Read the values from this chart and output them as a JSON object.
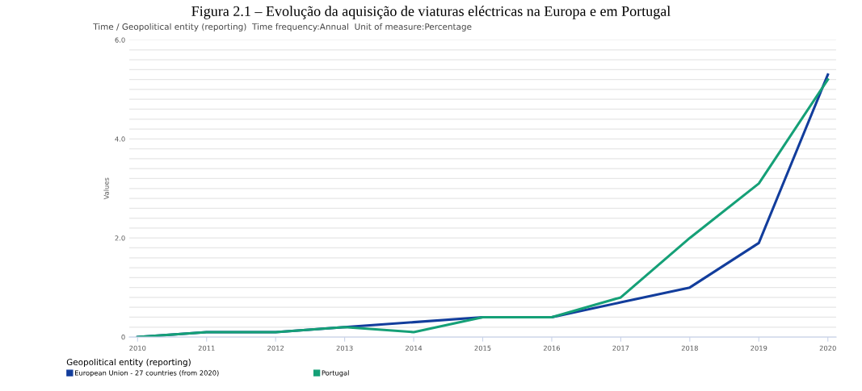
{
  "chart_data": {
    "type": "line",
    "title": "Figura 2.1 – Evolução da aquisição de viaturas eléctricas na Europa e em Portugal",
    "subtitle": "Time / Geopolitical entity (reporting)  Time frequency:Annual  Unit of measure:Percentage",
    "ylabel": "Values",
    "legend_title": "Geopolitical entity (reporting)",
    "x": [
      2010,
      2011,
      2012,
      2013,
      2014,
      2015,
      2016,
      2017,
      2018,
      2019,
      2020
    ],
    "series": [
      {
        "name": "European Union - 27 countries (from 2020)",
        "color": "#123d9c",
        "values": [
          0,
          0.1,
          0.1,
          0.2,
          0.3,
          0.4,
          0.4,
          0.7,
          1.0,
          1.9,
          5.3
        ]
      },
      {
        "name": "Portugal",
        "color": "#15a077",
        "values": [
          0,
          0.1,
          0.1,
          0.2,
          0.1,
          0.4,
          0.4,
          0.8,
          2.0,
          3.1,
          5.2
        ]
      }
    ],
    "xlim": [
      2009.88,
      2020.12
    ],
    "xticks": [
      2010,
      2011,
      2012,
      2013,
      2014,
      2015,
      2016,
      2017,
      2018,
      2019,
      2020
    ],
    "ylim": [
      0,
      6.0
    ],
    "yticks": [
      {
        "value": 0,
        "label": "0"
      },
      {
        "value": 0.2,
        "label": null
      },
      {
        "value": 0.4,
        "label": null
      },
      {
        "value": 0.6,
        "label": null
      },
      {
        "value": 0.8,
        "label": null
      },
      {
        "value": 1.0,
        "label": null
      },
      {
        "value": 1.2,
        "label": null
      },
      {
        "value": 1.4,
        "label": null
      },
      {
        "value": 1.6,
        "label": null
      },
      {
        "value": 1.8,
        "label": null
      },
      {
        "value": 2.0,
        "label": "2.0"
      },
      {
        "value": 2.2,
        "label": null
      },
      {
        "value": 2.4,
        "label": null
      },
      {
        "value": 2.6,
        "label": null
      },
      {
        "value": 2.8,
        "label": null
      },
      {
        "value": 3.0,
        "label": null
      },
      {
        "value": 3.2,
        "label": null
      },
      {
        "value": 3.4,
        "label": null
      },
      {
        "value": 3.6,
        "label": null
      },
      {
        "value": 3.8,
        "label": null
      },
      {
        "value": 4.0,
        "label": "4.0"
      },
      {
        "value": 4.2,
        "label": null
      },
      {
        "value": 4.4,
        "label": null
      },
      {
        "value": 4.6,
        "label": null
      },
      {
        "value": 4.8,
        "label": null
      },
      {
        "value": 5.0,
        "label": null
      },
      {
        "value": 5.2,
        "label": null
      },
      {
        "value": 5.4,
        "label": null
      },
      {
        "value": 5.6,
        "label": null
      },
      {
        "value": 5.8,
        "label": null
      },
      {
        "value": 6.0,
        "label": "6.0"
      }
    ],
    "grid": "y",
    "legend": "bottom left",
    "marker": "none",
    "line_style": "solid"
  }
}
